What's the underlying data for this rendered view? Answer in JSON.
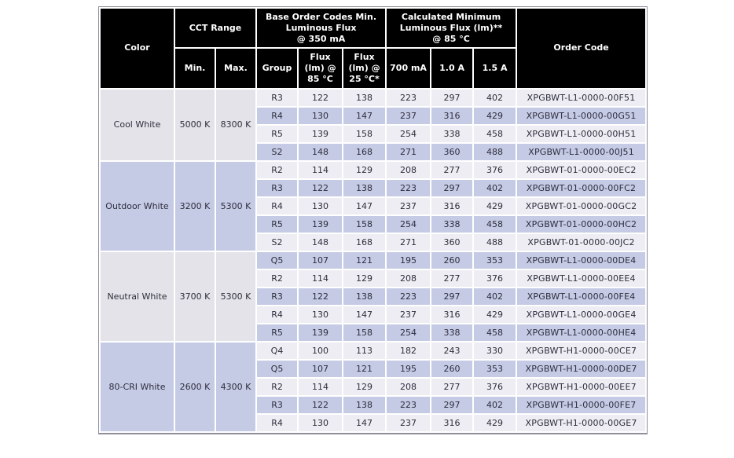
{
  "table": {
    "header": {
      "color": "Color",
      "cct_range": "CCT Range",
      "cct_min": "Min.",
      "cct_max": "Max.",
      "base_order_codes": "Base Order Codes Min.\nLuminous Flux\n@ 350 mA",
      "group": "Group",
      "flux_85": "Flux\n(lm) @\n85 °C",
      "flux_25": "Flux\n(lm) @\n25 °C*",
      "calculated_min": "Calculated Minimum\nLuminous Flux (lm)**\n@ 85 °C",
      "current_700ma": "700 mA",
      "current_1a": "1.0 A",
      "current_15a": "1.5 A",
      "order_code": "Order Code"
    },
    "column_keys": [
      "group",
      "flux_lm_85c",
      "flux_lm_25c",
      "lm_700ma",
      "lm_1a",
      "lm_15a",
      "order_code"
    ],
    "groups": [
      {
        "color": "Cool White",
        "cct_min": "5000 K",
        "cct_max": "8300 K",
        "rows": [
          [
            "R3",
            "122",
            "138",
            "223",
            "297",
            "402",
            "XPGBWT-L1-0000-00F51"
          ],
          [
            "R4",
            "130",
            "147",
            "237",
            "316",
            "429",
            "XPGBWT-L1-0000-00G51"
          ],
          [
            "R5",
            "139",
            "158",
            "254",
            "338",
            "458",
            "XPGBWT-L1-0000-00H51"
          ],
          [
            "S2",
            "148",
            "168",
            "271",
            "360",
            "488",
            "XPGBWT-L1-0000-00J51"
          ]
        ]
      },
      {
        "color": "Outdoor White",
        "cct_min": "3200 K",
        "cct_max": "5300 K",
        "rows": [
          [
            "R2",
            "114",
            "129",
            "208",
            "277",
            "376",
            "XPGBWT-01-0000-00EC2"
          ],
          [
            "R3",
            "122",
            "138",
            "223",
            "297",
            "402",
            "XPGBWT-01-0000-00FC2"
          ],
          [
            "R4",
            "130",
            "147",
            "237",
            "316",
            "429",
            "XPGBWT-01-0000-00GC2"
          ],
          [
            "R5",
            "139",
            "158",
            "254",
            "338",
            "458",
            "XPGBWT-01-0000-00HC2"
          ],
          [
            "S2",
            "148",
            "168",
            "271",
            "360",
            "488",
            "XPGBWT-01-0000-00JC2"
          ]
        ]
      },
      {
        "color": "Neutral White",
        "cct_min": "3700 K",
        "cct_max": "5300 K",
        "rows": [
          [
            "Q5",
            "107",
            "121",
            "195",
            "260",
            "353",
            "XPGBWT-L1-0000-00DE4"
          ],
          [
            "R2",
            "114",
            "129",
            "208",
            "277",
            "376",
            "XPGBWT-L1-0000-00EE4"
          ],
          [
            "R3",
            "122",
            "138",
            "223",
            "297",
            "402",
            "XPGBWT-L1-0000-00FE4"
          ],
          [
            "R4",
            "130",
            "147",
            "237",
            "316",
            "429",
            "XPGBWT-L1-0000-00GE4"
          ],
          [
            "R5",
            "139",
            "158",
            "254",
            "338",
            "458",
            "XPGBWT-L1-0000-00HE4"
          ]
        ]
      },
      {
        "color": "80-CRI White",
        "cct_min": "2600 K",
        "cct_max": "4300 K",
        "rows": [
          [
            "Q4",
            "100",
            "113",
            "182",
            "243",
            "330",
            "XPGBWT-H1-0000-00CE7"
          ],
          [
            "Q5",
            "107",
            "121",
            "195",
            "260",
            "353",
            "XPGBWT-H1-0000-00DE7"
          ],
          [
            "R2",
            "114",
            "129",
            "208",
            "277",
            "376",
            "XPGBWT-H1-0000-00EE7"
          ],
          [
            "R3",
            "122",
            "138",
            "223",
            "297",
            "402",
            "XPGBWT-H1-0000-00FE7"
          ],
          [
            "R4",
            "130",
            "147",
            "237",
            "316",
            "429",
            "XPGBWT-H1-0000-00GE7"
          ]
        ]
      }
    ]
  },
  "colors": {
    "page_bg": "#ffffff",
    "header_bg": "#000000",
    "header_text": "#ffffff",
    "grid": "#ffffff",
    "border": "#8f8f9c",
    "text": "#2e2e3d",
    "row_light": "#ededf3",
    "row_alt": "#c5cae5",
    "group_light": "#e3e3e9"
  }
}
